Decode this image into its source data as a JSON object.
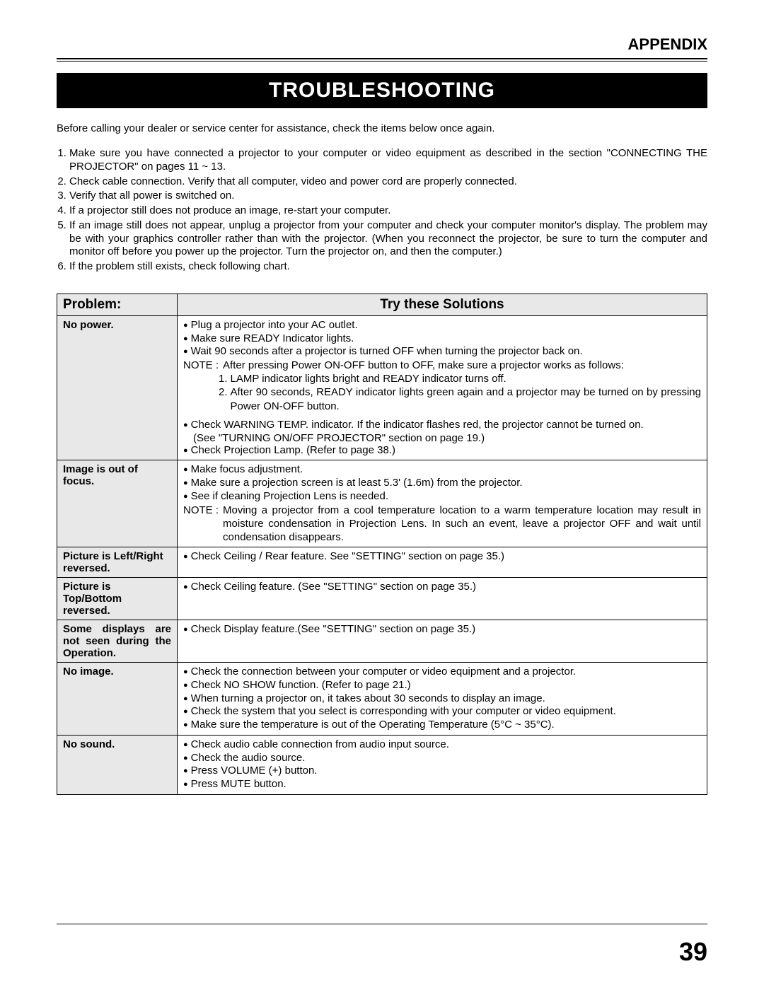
{
  "header": {
    "appendix": "APPENDIX"
  },
  "title": "TROUBLESHOOTING",
  "intro": "Before calling your dealer or service center for assistance, check the items below once again.",
  "steps": [
    "Make sure you have connected a projector to your computer or video equipment as described in the section \"CONNECTING THE PROJECTOR\"  on pages 11 ~ 13.",
    "Check cable connection.  Verify that all computer, video and power cord are properly connected.",
    "Verify that all power is switched on.",
    "If a projector still does not produce an image, re-start your computer.",
    "If an image still does not appear, unplug a projector from your computer and check your computer monitor's display.  The problem may be with your graphics controller rather than with the projector.  (When you reconnect the projector, be sure to turn the computer and monitor off before you power up the projector.  Turn the projector on, and then the computer.)",
    "If the problem still exists, check following chart."
  ],
  "table": {
    "headers": {
      "problem": "Problem:",
      "solutions": "Try these Solutions"
    },
    "rows": [
      {
        "problem": "No power.",
        "bullets_top": [
          "Plug a projector into your AC outlet.",
          "Make sure READY Indicator lights.",
          "Wait 90 seconds after a projector is turned OFF when turning the projector back on."
        ],
        "note_label": "NOTE :",
        "note_body": "After pressing Power ON-OFF button to OFF, make sure a projector works as follows:",
        "sub_numbered": [
          "LAMP indicator lights bright and READY indicator turns off.",
          "After 90 seconds, READY indicator lights green again and a projector may be turned on by pressing Power ON-OFF button."
        ],
        "bullets_bottom": [
          "Check WARNING TEMP. indicator.  If the indicator flashes red, the projector cannot be turned on.",
          "(See \"TURNING ON/OFF PROJECTOR\" section on page 19.)",
          "Check Projection Lamp.  (Refer to page 38.)"
        ]
      },
      {
        "problem": "Image is out of focus.",
        "bullets_top": [
          "Make focus adjustment.",
          "Make sure a projection screen is at least 5.3' (1.6m) from the projector.",
          "See if cleaning Projection Lens is needed."
        ],
        "note_label": "NOTE :",
        "note_body": "Moving a projector from a cool temperature location to a warm temperature location may result in moisture condensation in Projection Lens.  In such an event, leave a projector OFF and wait until condensation disappears."
      },
      {
        "problem": "Picture is Left/Right reversed.",
        "bullets_top": [
          "Check Ceiling / Rear feature.  See \"SETTING\" section on page 35.)"
        ]
      },
      {
        "problem": "Picture is Top/Bottom reversed.",
        "bullets_top": [
          "Check Ceiling feature.  (See \"SETTING\" section on page 35.)"
        ]
      },
      {
        "problem": "Some displays are not seen during the Operation.",
        "bullets_top": [
          "Check Display feature.(See \"SETTING\" section on page 35.)"
        ]
      },
      {
        "problem": "No image.",
        "bullets_top": [
          "Check the connection between your computer or video equipment and a projector.",
          "Check NO SHOW function.  (Refer to page 21.)",
          "When turning a projector on, it takes about 30 seconds to display an image.",
          "Check the system that you select is corresponding with your computer or video equipment.",
          "Make sure the temperature is out of the Operating Temperature (5°C ~ 35°C)."
        ]
      },
      {
        "problem": "No sound.",
        "bullets_top": [
          "Check audio cable connection from audio input source.",
          "Check the audio source.",
          "Press VOLUME (+) button.",
          "Press MUTE button."
        ]
      }
    ]
  },
  "page_number": "39"
}
